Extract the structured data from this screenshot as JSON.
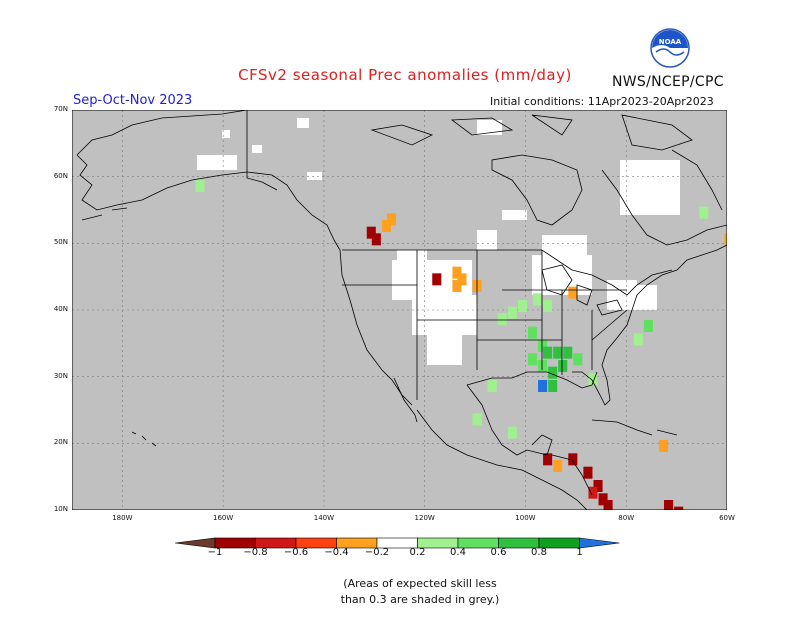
{
  "header": {
    "title": "CFSv2 seasonal Prec anomalies (mm/day)",
    "agency": "NWS/NCEP/CPC",
    "season": "Sep-Oct-Nov 2023",
    "initial_conditions": "Initial conditions: 11Apr2023-20Apr2023",
    "logo_text": "NOAA"
  },
  "map": {
    "projection": "lat-lon",
    "extent": {
      "lon_min": -190,
      "lon_max": -60,
      "lat_min": 10,
      "lat_max": 70
    },
    "lat_labels": [
      {
        "lat": 70,
        "text": "70N"
      },
      {
        "lat": 60,
        "text": "60N"
      },
      {
        "lat": 50,
        "text": "50N"
      },
      {
        "lat": 40,
        "text": "40N"
      },
      {
        "lat": 30,
        "text": "30N"
      },
      {
        "lat": 20,
        "text": "20N"
      },
      {
        "lat": 10,
        "text": "10N"
      }
    ],
    "lon_labels": [
      {
        "lon": -180,
        "text": "180W"
      },
      {
        "lon": -160,
        "text": "160W"
      },
      {
        "lon": -140,
        "text": "140W"
      },
      {
        "lon": -120,
        "text": "120W"
      },
      {
        "lon": -100,
        "text": "100W"
      },
      {
        "lon": -80,
        "text": "80W"
      },
      {
        "lon": -60,
        "text": "60W"
      }
    ],
    "low_skill_color": "#c0c0c0",
    "cells": [
      {
        "lon": -131,
        "lat": 52,
        "v": -1.0
      },
      {
        "lon": -130,
        "lat": 51,
        "v": -0.9
      },
      {
        "lon": -128,
        "lat": 53,
        "v": -0.3
      },
      {
        "lon": -127,
        "lat": 54,
        "v": -0.3
      },
      {
        "lon": -118,
        "lat": 45,
        "v": -0.9
      },
      {
        "lon": -114,
        "lat": 46,
        "v": -0.3
      },
      {
        "lon": -113,
        "lat": 45,
        "v": -0.3
      },
      {
        "lon": -114,
        "lat": 44,
        "v": -0.3
      },
      {
        "lon": -110,
        "lat": 44,
        "v": -0.3
      },
      {
        "lon": -91,
        "lat": 43,
        "v": -0.3
      },
      {
        "lon": -105,
        "lat": 39,
        "v": 0.3
      },
      {
        "lon": -103,
        "lat": 40,
        "v": 0.3
      },
      {
        "lon": -101,
        "lat": 41,
        "v": 0.3
      },
      {
        "lon": -98,
        "lat": 42,
        "v": 0.3
      },
      {
        "lon": -96,
        "lat": 41,
        "v": 0.3
      },
      {
        "lon": -99,
        "lat": 37,
        "v": 0.5
      },
      {
        "lon": -97,
        "lat": 35,
        "v": 0.5
      },
      {
        "lon": -96,
        "lat": 34,
        "v": 0.7
      },
      {
        "lon": -94,
        "lat": 34,
        "v": 0.7
      },
      {
        "lon": -92,
        "lat": 34,
        "v": 0.7
      },
      {
        "lon": -93,
        "lat": 32,
        "v": 0.7
      },
      {
        "lon": -95,
        "lat": 31,
        "v": 0.7
      },
      {
        "lon": -97,
        "lat": 32,
        "v": 0.5
      },
      {
        "lon": -99,
        "lat": 33,
        "v": 0.5
      },
      {
        "lon": -97,
        "lat": 29,
        "v": 1.0
      },
      {
        "lon": -95,
        "lat": 29,
        "v": 0.7
      },
      {
        "lon": -90,
        "lat": 33,
        "v": 0.5
      },
      {
        "lon": -87,
        "lat": 30,
        "v": 0.3
      },
      {
        "lon": -107,
        "lat": 29,
        "v": 0.3
      },
      {
        "lon": -110,
        "lat": 24,
        "v": 0.3
      },
      {
        "lon": -103,
        "lat": 22,
        "v": 0.3
      },
      {
        "lon": -76,
        "lat": 38,
        "v": 0.5
      },
      {
        "lon": -78,
        "lat": 36,
        "v": 0.3
      },
      {
        "lon": -65,
        "lat": 55,
        "v": 0.3
      },
      {
        "lon": -165,
        "lat": 59,
        "v": 0.3
      },
      {
        "lon": -96,
        "lat": 18,
        "v": -0.9
      },
      {
        "lon": -94,
        "lat": 17,
        "v": -0.3
      },
      {
        "lon": -91,
        "lat": 18,
        "v": -0.9
      },
      {
        "lon": -88,
        "lat": 16,
        "v": -1.0
      },
      {
        "lon": -86,
        "lat": 14,
        "v": -0.9
      },
      {
        "lon": -87,
        "lat": 13,
        "v": -0.7
      },
      {
        "lon": -85,
        "lat": 12,
        "v": -1.0
      },
      {
        "lon": -84,
        "lat": 11,
        "v": -0.9
      },
      {
        "lon": -72,
        "lat": 11,
        "v": -1.0
      },
      {
        "lon": -70,
        "lat": 10,
        "v": -0.9
      },
      {
        "lon": -73,
        "lat": 20,
        "v": -0.3
      },
      {
        "lon": -60,
        "lat": 51,
        "v": -0.3
      }
    ]
  },
  "colorbar": {
    "bins": [
      {
        "range": "< -1",
        "color": "#6b3a2a"
      },
      {
        "range": "-1 to -0.8",
        "color": "#a00000"
      },
      {
        "range": "-0.8 to -0.6",
        "color": "#d01818"
      },
      {
        "range": "-0.6 to -0.4",
        "color": "#ff4010"
      },
      {
        "range": "-0.4 to -0.2",
        "color": "#ffa020"
      },
      {
        "range": "-0.2 to 0.2",
        "color": "#ffffff"
      },
      {
        "range": "0.2 to 0.4",
        "color": "#a0f090"
      },
      {
        "range": "0.4 to 0.6",
        "color": "#60e060"
      },
      {
        "range": "0.6 to 0.8",
        "color": "#30c040"
      },
      {
        "range": "0.8 to 1",
        "color": "#10a020"
      },
      {
        "range": "> 1",
        "color": "#2070e0"
      }
    ],
    "tick_labels": [
      "−1",
      "−0.8",
      "−0.6",
      "−0.4",
      "−0.2",
      "0.2",
      "0.4",
      "0.6",
      "0.8",
      "1"
    ]
  },
  "note": {
    "line1": "(Areas of expected skill less",
    "line2": "than 0.3 are shaded in grey.)"
  }
}
